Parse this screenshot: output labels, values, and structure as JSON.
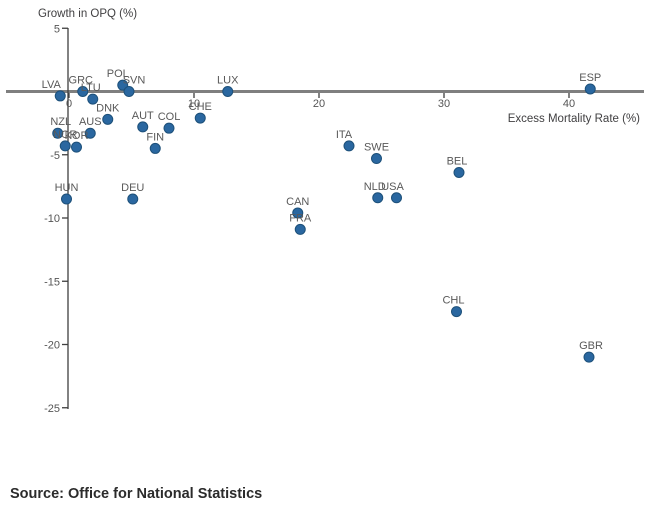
{
  "source": {
    "text": "Source: Office for National Statistics"
  },
  "chart_data": {
    "type": "scatter",
    "title": "",
    "xlabel": "Excess Mortality Rate (%)",
    "ylabel": "Growth in OPQ (%)",
    "xlim": [
      -5,
      46
    ],
    "ylim": [
      -25,
      5
    ],
    "x_ticks": [
      0,
      10,
      20,
      30,
      40
    ],
    "y_ticks": [
      5,
      -5,
      -10,
      -15,
      -20,
      -25
    ],
    "grid": false,
    "legend": "none",
    "marker": "circle",
    "colors": {
      "dot_fill": "#2a67a0",
      "dot_stroke": "#1d5079",
      "zero_line": "#7f7f7f",
      "axis": "#404040",
      "tick_text": "#555555",
      "label_text": "#595959",
      "source_text": "#2b2b2b"
    },
    "points": [
      {
        "code": "LVA",
        "x": -0.7,
        "y": -0.35,
        "label_dx": -9
      },
      {
        "code": "GRC",
        "x": 1.1,
        "y": 0.0,
        "label_dx": -2
      },
      {
        "code": "LTU",
        "x": 1.9,
        "y": -0.6,
        "label_dx": -2
      },
      {
        "code": "POL",
        "x": 4.3,
        "y": 0.5,
        "label_dx": -5
      },
      {
        "code": "SVN",
        "x": 4.8,
        "y": 0.0,
        "label_dx": 5
      },
      {
        "code": "DNK",
        "x": 3.1,
        "y": -2.2
      },
      {
        "code": "NZL",
        "x": -0.9,
        "y": -3.3,
        "label_dx": 3
      },
      {
        "code": "AUS",
        "x": 1.7,
        "y": -3.3
      },
      {
        "code": "NOR",
        "x": -0.3,
        "y": -4.3
      },
      {
        "code": "KOR",
        "x": 0.6,
        "y": -4.4
      },
      {
        "code": "HUN",
        "x": -0.2,
        "y": -8.5
      },
      {
        "code": "DEU",
        "x": 5.1,
        "y": -8.5
      },
      {
        "code": "AUT",
        "x": 5.9,
        "y": -2.8
      },
      {
        "code": "COL",
        "x": 8.0,
        "y": -2.9
      },
      {
        "code": "FIN",
        "x": 6.9,
        "y": -4.5
      },
      {
        "code": "CHE",
        "x": 10.5,
        "y": -2.1
      },
      {
        "code": "LUX",
        "x": 12.7,
        "y": 0.0
      },
      {
        "code": "ITA",
        "x": 22.4,
        "y": -4.3,
        "label_dx": -5
      },
      {
        "code": "SWE",
        "x": 24.6,
        "y": -5.3
      },
      {
        "code": "NLD",
        "x": 24.7,
        "y": -8.4,
        "label_dx": -3
      },
      {
        "code": "USA",
        "x": 26.2,
        "y": -8.4,
        "label_dx": -4
      },
      {
        "code": "BEL",
        "x": 31.2,
        "y": -6.4,
        "label_dx": -2
      },
      {
        "code": "CAN",
        "x": 18.3,
        "y": -9.6
      },
      {
        "code": "FRA",
        "x": 18.5,
        "y": -10.9
      },
      {
        "code": "CHL",
        "x": 31.0,
        "y": -17.4,
        "label_dx": -3
      },
      {
        "code": "GBR",
        "x": 41.6,
        "y": -21.0,
        "label_dx": 2
      },
      {
        "code": "ESP",
        "x": 41.7,
        "y": 0.2
      }
    ]
  }
}
